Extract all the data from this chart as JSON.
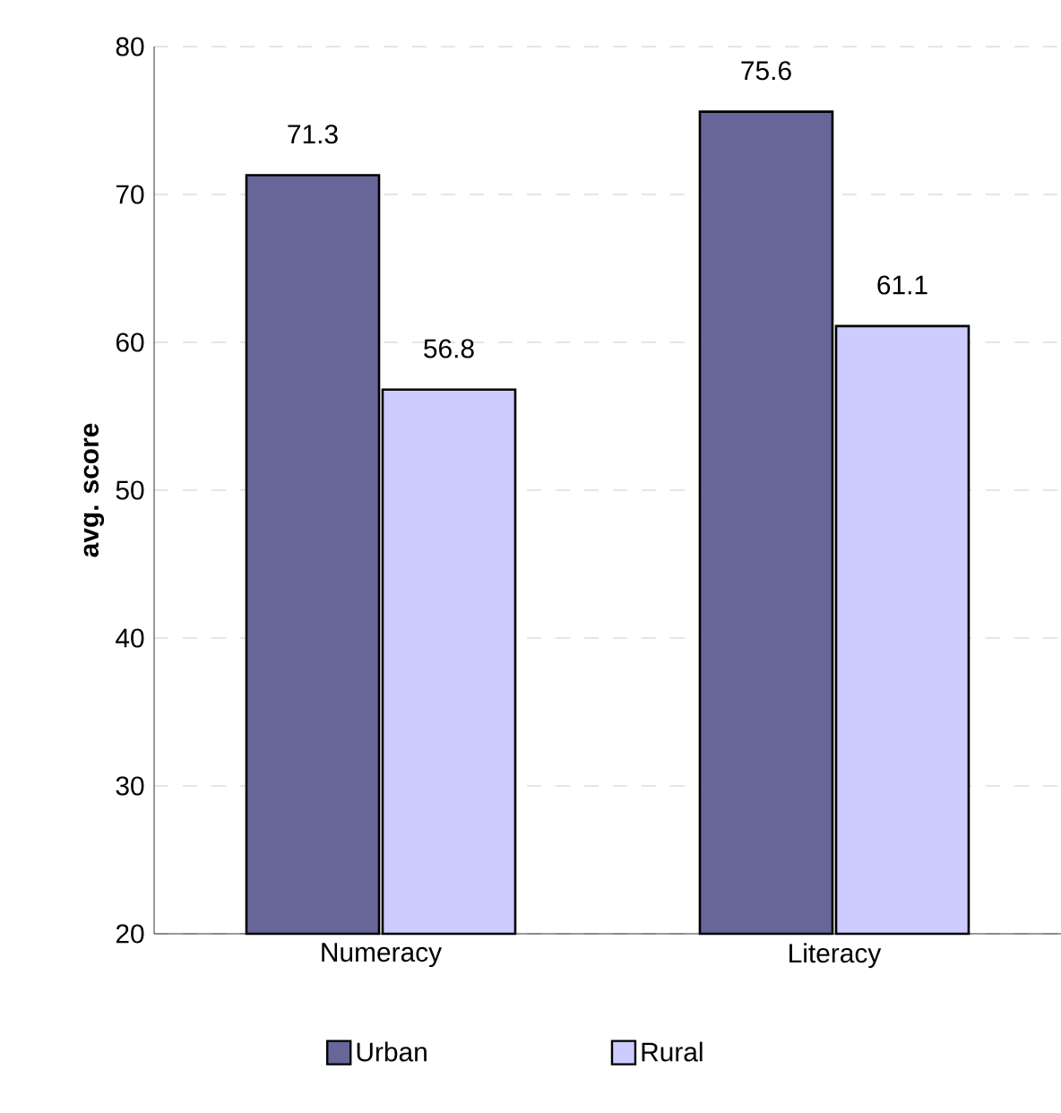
{
  "chart_data": {
    "type": "bar",
    "ylabel": "avg. score",
    "categories": [
      "Numeracy",
      "Literacy"
    ],
    "series": [
      {
        "name": "Urban",
        "color": "#666699",
        "values": [
          71.3,
          75.6
        ]
      },
      {
        "name": "Rural",
        "color": "#ccccff",
        "values": [
          56.8,
          61.1
        ]
      }
    ],
    "ylim": [
      20,
      80
    ],
    "yticks": [
      20,
      30,
      40,
      50,
      60,
      70,
      80
    ],
    "grid": "y",
    "legend": "bottom",
    "data_labels": true
  }
}
